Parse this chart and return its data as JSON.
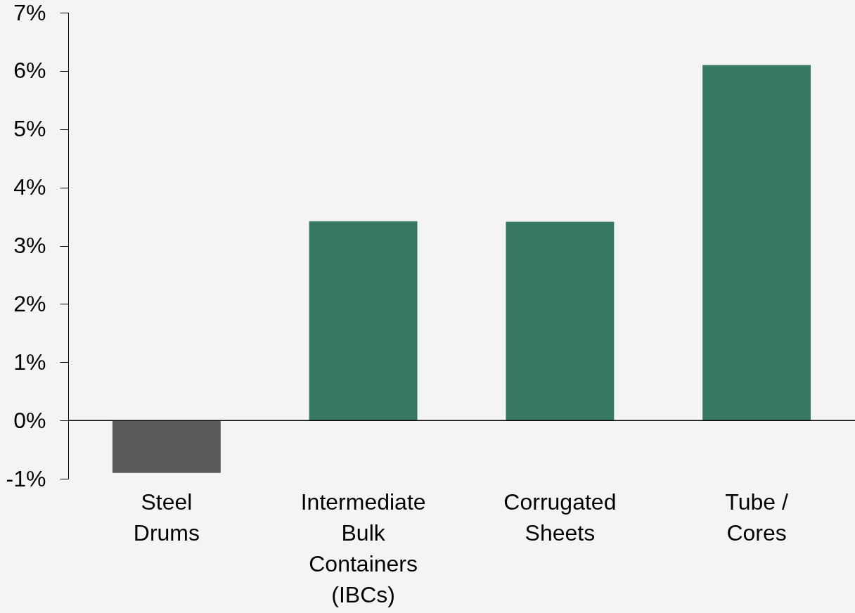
{
  "chart_data": {
    "type": "bar",
    "categories": [
      "Steel Drums",
      "Intermediate Bulk Containers (IBCs)",
      "Corrugated Sheets",
      "Tube / Cores"
    ],
    "values": [
      -0.9,
      3.42,
      3.41,
      6.1
    ],
    "colors": [
      "#595959",
      "#367863",
      "#367863",
      "#367863"
    ],
    "ylim": [
      -1,
      7
    ],
    "yticks": [
      {
        "value": -1,
        "label": "-1%"
      },
      {
        "value": 0,
        "label": "0%"
      },
      {
        "value": 1,
        "label": "1%"
      },
      {
        "value": 2,
        "label": "2%"
      },
      {
        "value": 3,
        "label": "3%"
      },
      {
        "value": 4,
        "label": "4%"
      },
      {
        "value": 5,
        "label": "5%"
      },
      {
        "value": 6,
        "label": "6%"
      },
      {
        "value": 7,
        "label": "7%"
      }
    ]
  }
}
